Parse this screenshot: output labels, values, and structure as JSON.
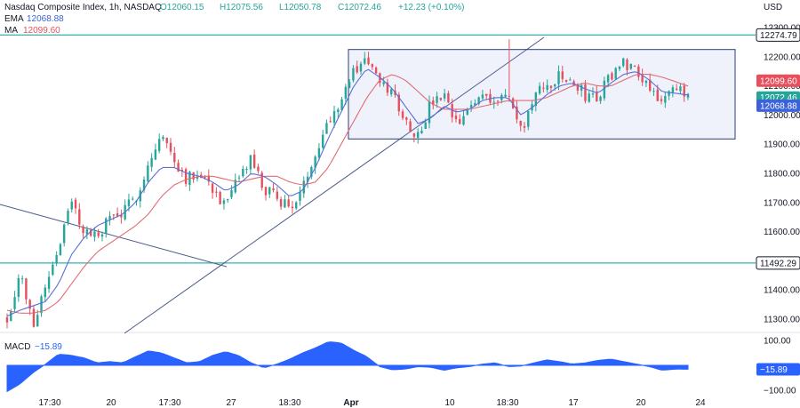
{
  "header": {
    "title": "Nasdaq Composite Index, 1h, NASDAQ",
    "open": "O12060.15",
    "high": "H12075.56",
    "low": "L12050.78",
    "close": "C12072.46",
    "change": "+12.23 (+0.10%)",
    "ema_label": "EMA",
    "ema_value": "12068.88",
    "ma_label": "MA",
    "ma_value": "12099.60"
  },
  "macd_header": {
    "label": "MACD",
    "value": "−15.89"
  },
  "currency": "USD",
  "chart_data": [
    {
      "type": "candlestick",
      "title": "Nasdaq Composite Index, 1h, NASDAQ",
      "currency": "USD",
      "ylim": [
        11260,
        12340
      ],
      "y_ticks": [
        11300,
        11400,
        11500,
        11600,
        11700,
        11800,
        11900,
        12000,
        12100,
        12200,
        12300
      ],
      "y_tick_labels": [
        "11300.00",
        "11400.00",
        "11500.00",
        "11600.00",
        "11700.00",
        "11800.00",
        "11900.00",
        "12000.00",
        "12100.00",
        "12200.00",
        "12300.00"
      ],
      "x_tick_labels": [
        "17:30",
        "20",
        "17:30",
        "27",
        "18:30",
        "Apr",
        "10",
        "18:30",
        "17",
        "20",
        "24"
      ],
      "ohlc_anchor_path": [
        11300,
        11460,
        11280,
        11420,
        11550,
        11700,
        11600,
        11580,
        11650,
        11660,
        11720,
        11830,
        11930,
        11850,
        11780,
        11810,
        11750,
        11680,
        11780,
        11850,
        11740,
        11720,
        11680,
        11740,
        11880,
        11980,
        12060,
        12150,
        12200,
        12100,
        12080,
        11980,
        11930,
        12040,
        12060,
        11960,
        12020,
        12080,
        12050,
        12070,
        11940,
        12060,
        12100,
        12130,
        12110,
        12070,
        12060,
        12140,
        12180,
        12160,
        12100,
        12050,
        12080,
        12072
      ],
      "ema_path": [
        11310,
        11330,
        11345,
        11360,
        11420,
        11520,
        11580,
        11620,
        11640,
        11660,
        11700,
        11770,
        11820,
        11820,
        11800,
        11790,
        11770,
        11740,
        11760,
        11800,
        11790,
        11760,
        11720,
        11740,
        11820,
        11920,
        12010,
        12100,
        12160,
        12130,
        12090,
        12030,
        11970,
        11990,
        12030,
        12010,
        12020,
        12050,
        12060,
        12060,
        12000,
        12030,
        12070,
        12100,
        12110,
        12090,
        12075,
        12110,
        12140,
        12150,
        12120,
        12080,
        12075,
        12068.88
      ],
      "ma_path": [
        11330,
        11320,
        11320,
        11330,
        11360,
        11420,
        11480,
        11530,
        11560,
        11590,
        11620,
        11660,
        11720,
        11760,
        11780,
        11790,
        11790,
        11780,
        11770,
        11780,
        11790,
        11790,
        11770,
        11760,
        11770,
        11820,
        11900,
        11980,
        12060,
        12120,
        12140,
        12120,
        12080,
        12040,
        12020,
        12020,
        12020,
        12030,
        12040,
        12050,
        12050,
        12050,
        12060,
        12080,
        12100,
        12110,
        12100,
        12100,
        12120,
        12140,
        12140,
        12130,
        12115,
        12099.6
      ],
      "series": [
        {
          "name": "EMA",
          "color": "#5b6fd6"
        },
        {
          "name": "MA",
          "color": "#e06d76"
        }
      ],
      "horizontal_levels": [
        {
          "value": 12274.79,
          "label": "12274.79",
          "color": "#2fb3b1"
        },
        {
          "value": 11492.29,
          "label": "11492.29",
          "color": "#2fb3b1"
        }
      ],
      "price_tags": [
        {
          "value": 12099.6,
          "label": "12099.60",
          "color": "#e5505c"
        },
        {
          "value": 12072.46,
          "label": "12072.46",
          "color": "#26a69a"
        },
        {
          "value": 12068.88,
          "label": "12068.88",
          "color": "#3b62d9"
        }
      ],
      "range_box": {
        "top": 12225,
        "bottom": 11918,
        "color": "#2b3f78"
      },
      "colors": {
        "up": "#26a69a",
        "down": "#e5505c"
      }
    },
    {
      "type": "area",
      "title": "MACD",
      "current": -15.89,
      "current_label": "−15.89",
      "ylim": [
        -125,
        125
      ],
      "y_ticks": [
        100,
        -100
      ],
      "y_tick_labels": [
        "100.00",
        "−100.00"
      ],
      "values": [
        -105,
        -75,
        -30,
        5,
        45,
        40,
        30,
        10,
        15,
        10,
        35,
        58,
        50,
        30,
        10,
        15,
        40,
        55,
        40,
        10,
        -10,
        5,
        25,
        50,
        70,
        95,
        90,
        60,
        35,
        -5,
        -18,
        -15,
        -5,
        -8,
        -20,
        -10,
        -5,
        5,
        10,
        -5,
        -3,
        10,
        22,
        15,
        5,
        10,
        20,
        25,
        15,
        5,
        -5,
        -20,
        -15,
        -15.89
      ],
      "color": "#2962ff"
    }
  ]
}
